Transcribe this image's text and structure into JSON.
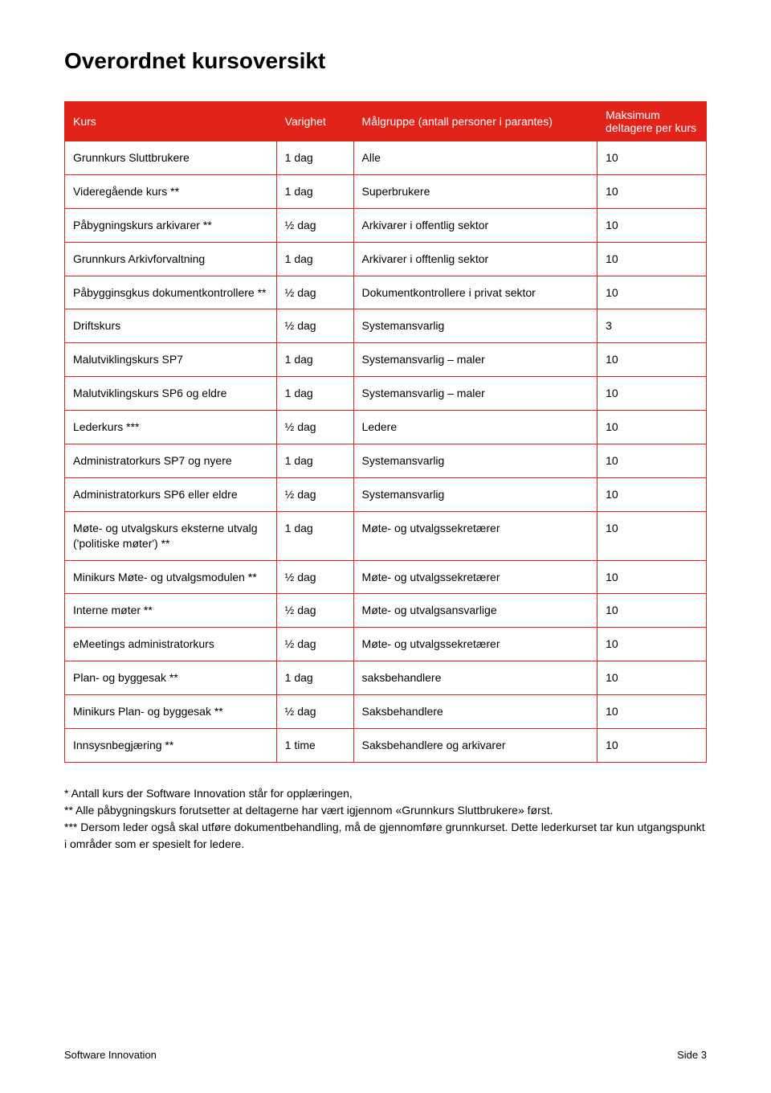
{
  "title": "Overordnet kursoversikt",
  "columns": [
    "Kurs",
    "Varighet",
    "Målgruppe (antall personer i parantes)",
    "Maksimum deltagere per kurs"
  ],
  "rows": [
    [
      "Grunnkurs Sluttbrukere",
      "1 dag",
      "Alle",
      "10"
    ],
    [
      "Videregående kurs **",
      "1 dag",
      "Superbrukere",
      "10"
    ],
    [
      "Påbygningskurs arkivarer **",
      "½ dag",
      "Arkivarer i offentlig sektor",
      "10"
    ],
    [
      "Grunnkurs Arkivforvaltning",
      "1 dag",
      "Arkivarer i offtenlig sektor",
      "10"
    ],
    [
      "Påbygginsgkus dokumentkontrollere **",
      "½ dag",
      "Dokumentkontrollere i privat sektor",
      "10"
    ],
    [
      "Driftskurs",
      "½ dag",
      "Systemansvarlig",
      "3"
    ],
    [
      "Malutviklingskurs SP7",
      "1 dag",
      "Systemansvarlig – maler",
      "10"
    ],
    [
      "Malutviklingskurs SP6 og eldre",
      "1 dag",
      "Systemansvarlig – maler",
      "10"
    ],
    [
      "Lederkurs ***",
      "½ dag",
      "Ledere",
      "10"
    ],
    [
      "Administratorkurs SP7 og nyere",
      "1 dag",
      "Systemansvarlig",
      "10"
    ],
    [
      "Administratorkurs SP6 eller eldre",
      "½ dag",
      "Systemansvarlig",
      "10"
    ],
    [
      "Møte- og utvalgskurs eksterne utvalg ('politiske møter') **",
      "1 dag",
      "Møte- og utvalgssekretærer",
      "10"
    ],
    [
      "Minikurs Møte- og utvalgsmodulen **",
      "½ dag",
      "Møte- og utvalgssekretærer",
      "10"
    ],
    [
      "Interne møter **",
      "½ dag",
      "Møte- og utvalgsansvarlige",
      "10"
    ],
    [
      "eMeetings administratorkurs",
      "½ dag",
      "Møte- og utvalgssekretærer",
      "10"
    ],
    [
      "Plan- og byggesak **",
      "1 dag",
      "saksbehandlere",
      "10"
    ],
    [
      "Minikurs Plan- og byggesak **",
      "½ dag",
      "Saksbehandlere",
      "10"
    ],
    [
      "Innsysnbegjæring **",
      "1 time",
      "Saksbehandlere og arkivarer",
      "10"
    ]
  ],
  "notes": [
    "* Antall kurs der Software Innovation står for opplæringen,",
    "** Alle påbygningskurs forutsetter at deltagerne har vært igjennom «Grunnkurs Sluttbrukere» først.",
    "*** Dersom leder også skal utføre dokumentbehandling, må de gjennomføre grunnkurset. Dette lederkurset tar kun utgangspunkt i områder som er spesielt for ledere."
  ],
  "footer": {
    "left": "Software Innovation",
    "right": "Side 3"
  },
  "style": {
    "header_bg": "#e2231a",
    "header_fg": "#ffffff",
    "border": "#e2231a",
    "title_fontsize": 28,
    "body_fontsize": 14
  }
}
